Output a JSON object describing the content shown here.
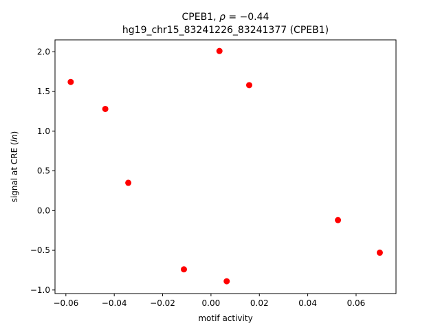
{
  "chart_data": {
    "type": "scatter",
    "title_line1_prefix": "CPEB1, ",
    "title_line1_rho": "ρ",
    "title_line1_suffix": " = −0.44",
    "title_line2": "hg19_chr15_83241226_83241377 (CPEB1)",
    "xlabel": "motif activity",
    "ylabel_prefix": "signal at CRE (",
    "ylabel_italic": "ln",
    "ylabel_suffix": ")",
    "xlim": [
      -0.0645,
      0.0765
    ],
    "ylim": [
      -1.045,
      2.15
    ],
    "xticks": [
      {
        "value": -0.06,
        "label": "−0.06"
      },
      {
        "value": -0.04,
        "label": "−0.04"
      },
      {
        "value": -0.02,
        "label": "−0.02"
      },
      {
        "value": 0.0,
        "label": "0.00"
      },
      {
        "value": 0.02,
        "label": "0.02"
      },
      {
        "value": 0.04,
        "label": "0.04"
      },
      {
        "value": 0.06,
        "label": "0.06"
      }
    ],
    "yticks": [
      {
        "value": -1.0,
        "label": "−1.0"
      },
      {
        "value": -0.5,
        "label": "−0.5"
      },
      {
        "value": 0.0,
        "label": "0.0"
      },
      {
        "value": 0.5,
        "label": "0.5"
      },
      {
        "value": 1.0,
        "label": "1.0"
      },
      {
        "value": 1.5,
        "label": "1.5"
      },
      {
        "value": 2.0,
        "label": "2.0"
      }
    ],
    "marker_color": "#ff0000",
    "points": [
      {
        "x": -0.058,
        "y": 1.62
      },
      {
        "x": -0.0437,
        "y": 1.28
      },
      {
        "x": -0.0342,
        "y": 0.35
      },
      {
        "x": -0.0112,
        "y": -0.74
      },
      {
        "x": 0.0035,
        "y": 2.01
      },
      {
        "x": 0.0065,
        "y": -0.89
      },
      {
        "x": 0.0158,
        "y": 1.58
      },
      {
        "x": 0.0525,
        "y": -0.12
      },
      {
        "x": 0.0698,
        "y": -0.53
      }
    ]
  }
}
